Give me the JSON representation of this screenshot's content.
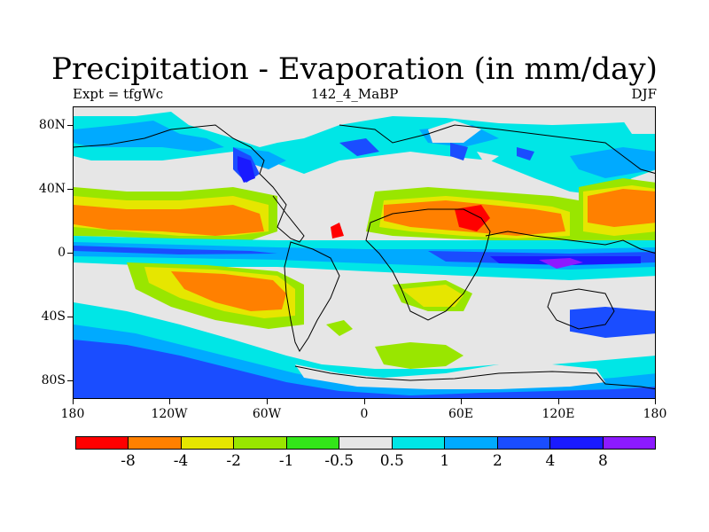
{
  "title": "Precipitation - Evaporation (in mm/day)",
  "subtitle_left": "Expt = tfgWc",
  "subtitle_center": "142_4_MaBP",
  "subtitle_right": "DJF",
  "y_axis_labels": [
    "80N",
    "40N",
    "0",
    "40S",
    "80S"
  ],
  "x_axis_labels": [
    "180",
    "120W",
    "60W",
    "0",
    "60E",
    "120E",
    "180"
  ],
  "legend": {
    "colors": [
      "#ff0000",
      "#ff8000",
      "#e6e600",
      "#99e600",
      "#33e619",
      "#e6e6e6",
      "#00e6e6",
      "#00aaff",
      "#1a4dff",
      "#1a1aff",
      "#8c1aff"
    ],
    "labels": [
      "-8",
      "-4",
      "-2",
      "-1",
      "-0.5",
      "0.5",
      "1",
      "2",
      "4",
      "8"
    ]
  }
}
